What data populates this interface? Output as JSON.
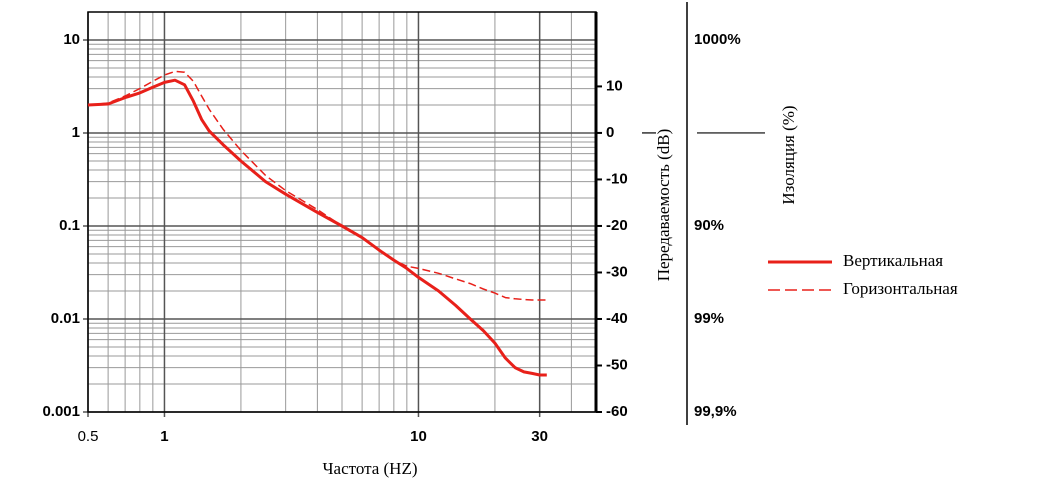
{
  "chart_data": {
    "type": "line",
    "x_label": "Частота (HZ)",
    "y2_label": "Передаваемость (dB)",
    "y3_label": "Изоляция (%)",
    "x": [
      0.5,
      0.6,
      0.7,
      0.8,
      0.9,
      1,
      1.1,
      1.2,
      1.3,
      1.4,
      1.5,
      1.7,
      2,
      2.5,
      3,
      4,
      5,
      6,
      7,
      8,
      9,
      10,
      12,
      14,
      16,
      18,
      20,
      22,
      24,
      26,
      28,
      30,
      32
    ],
    "series": [
      {
        "name": "Вертикальная",
        "color": "#e8201a",
        "style": "solid",
        "values": [
          2,
          2.05,
          2.4,
          2.7,
          3.1,
          3.5,
          3.7,
          3.3,
          2.2,
          1.4,
          1.05,
          0.75,
          0.5,
          0.3,
          0.22,
          0.14,
          0.1,
          0.075,
          0.055,
          0.043,
          0.035,
          0.028,
          0.02,
          0.014,
          0.01,
          0.0075,
          0.0055,
          0.0038,
          0.003,
          0.0027,
          0.0026,
          0.0025,
          0.0025
        ]
      },
      {
        "name": "Горизонтальная",
        "color": "#e8201a",
        "style": "dashed",
        "values": [
          2,
          2.1,
          2.5,
          3,
          3.6,
          4.2,
          4.6,
          4.5,
          3.6,
          2.5,
          1.8,
          1.1,
          0.65,
          0.35,
          0.24,
          0.15,
          0.1,
          0.075,
          0.055,
          0.043,
          0.037,
          0.035,
          0.031,
          0.027,
          0.024,
          0.021,
          0.019,
          0.017,
          0.0165,
          0.0162,
          0.016,
          0.016,
          0.016
        ]
      }
    ],
    "xlog": true,
    "ylog": true,
    "xlim": [
      0.5,
      50
    ],
    "ylim": [
      0.001,
      20
    ],
    "xticks": [
      0.5,
      1,
      10,
      30
    ],
    "yticks": [
      0.001,
      0.01,
      0.1,
      1,
      10
    ],
    "x_minor_ticks": [
      0.6,
      0.7,
      0.8,
      0.9,
      2,
      3,
      4,
      5,
      6,
      7,
      8,
      9,
      20,
      30,
      40
    ],
    "y_minor_ticks": [
      0.002,
      0.003,
      0.004,
      0.005,
      0.006,
      0.007,
      0.008,
      0.009,
      0.02,
      0.03,
      0.04,
      0.05,
      0.06,
      0.07,
      0.08,
      0.09,
      0.2,
      0.3,
      0.4,
      0.5,
      0.6,
      0.7,
      0.8,
      0.9,
      2,
      3,
      4,
      5,
      6,
      7,
      8,
      9
    ],
    "y2lim": [
      -60,
      26
    ],
    "y2ticks": [
      -60,
      -50,
      -40,
      -30,
      -20,
      -10,
      0,
      10
    ],
    "y3ticks": [
      {
        "value": 20,
        "label": "1000%"
      },
      {
        "value": -20,
        "label": "90%"
      },
      {
        "value": -40,
        "label": "99%"
      },
      {
        "value": -60,
        "label": "99,9%"
      }
    ],
    "reference_line": 0,
    "grid": true,
    "legend": "right"
  }
}
